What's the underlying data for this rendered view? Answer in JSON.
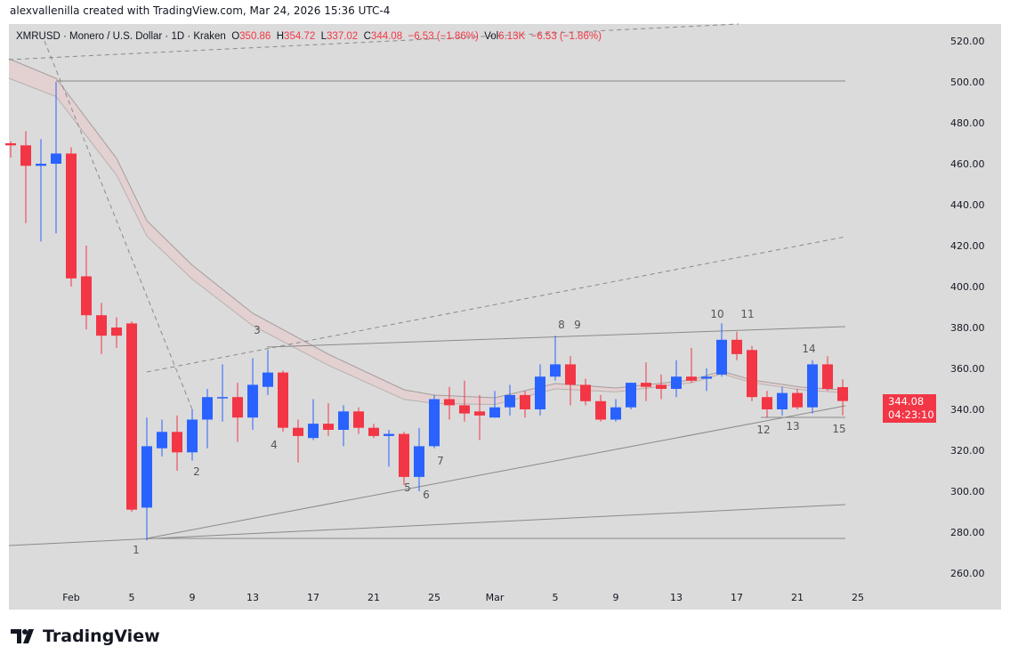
{
  "credit": "alexvallenilla created with TradingView.com, Mar 24, 2026 15:36 UTC-4",
  "legend": {
    "symbol": "XMRUSD · Monero / U.S. Dollar · 1D · Kraken",
    "o_label": "O",
    "o": "350.86",
    "h_label": "H",
    "h": "354.72",
    "l_label": "L",
    "l": "337.02",
    "c_label": "C",
    "c": "344.08",
    "change": "−6.53 (−1.86%)",
    "vol_label": "Vol",
    "vol": "6.13K",
    "vol_change": "−6.53 (−1.86%)"
  },
  "price_tag": {
    "price": "344.08",
    "countdown": "04:23:10"
  },
  "colors": {
    "up": "#2962ff",
    "down": "#f23645",
    "background": "#dbdbdb"
  },
  "chart_data": {
    "type": "candlestick",
    "y_ticks": [
      "520.00",
      "500.00",
      "480.00",
      "460.00",
      "440.00",
      "420.00",
      "400.00",
      "380.00",
      "360.00",
      "340.00",
      "320.00",
      "300.00",
      "280.00",
      "260.00"
    ],
    "ylim": [
      260,
      520
    ],
    "x_ticks": [
      [
        "Feb",
        "2026-02-01"
      ],
      [
        "5",
        "2026-02-05"
      ],
      [
        "9",
        "2026-02-09"
      ],
      [
        "13",
        "2026-02-13"
      ],
      [
        "17",
        "2026-02-17"
      ],
      [
        "21",
        "2026-02-21"
      ],
      [
        "25",
        "2026-02-25"
      ],
      [
        "Mar",
        "2026-03-01"
      ],
      [
        "5",
        "2026-03-05"
      ],
      [
        "9",
        "2026-03-09"
      ],
      [
        "13",
        "2026-03-13"
      ],
      [
        "17",
        "2026-03-17"
      ],
      [
        "21",
        "2026-03-21"
      ],
      [
        "25",
        "2026-03-25"
      ]
    ],
    "candles": [
      [
        "2026-01-28",
        470,
        471,
        463,
        469
      ],
      [
        "2026-01-29",
        469,
        476,
        431,
        459
      ],
      [
        "2026-01-30",
        459,
        472,
        422,
        460
      ],
      [
        "2026-01-31",
        460,
        500,
        426,
        465
      ],
      [
        "2026-02-01",
        465,
        468,
        400,
        404
      ],
      [
        "2026-02-02",
        405,
        420,
        379,
        386
      ],
      [
        "2026-02-03",
        386,
        392,
        367,
        376
      ],
      [
        "2026-02-04",
        380,
        385,
        370,
        376
      ],
      [
        "2026-02-05",
        382,
        383,
        290,
        291
      ],
      [
        "2026-02-06",
        292,
        336,
        276,
        322
      ],
      [
        "2026-02-07",
        321,
        335,
        317,
        329
      ],
      [
        "2026-02-08",
        329,
        337,
        310,
        319
      ],
      [
        "2026-02-09",
        319,
        340,
        315,
        335
      ],
      [
        "2026-02-10",
        335,
        350,
        321,
        346
      ],
      [
        "2026-02-11",
        346,
        362,
        334,
        346
      ],
      [
        "2026-02-12",
        346,
        353,
        324,
        336
      ],
      [
        "2026-02-13",
        336,
        365,
        330,
        352
      ],
      [
        "2026-02-14",
        351,
        369,
        347,
        358
      ],
      [
        "2026-02-15",
        358,
        359,
        329,
        331
      ],
      [
        "2026-02-16",
        331,
        335,
        314,
        327
      ],
      [
        "2026-02-17",
        326,
        345,
        325,
        333
      ],
      [
        "2026-02-18",
        333,
        343,
        327,
        330
      ],
      [
        "2026-02-19",
        330,
        342,
        322,
        339
      ],
      [
        "2026-02-20",
        339,
        341,
        328,
        331
      ],
      [
        "2026-02-21",
        331,
        333,
        326,
        327
      ],
      [
        "2026-02-22",
        327,
        330,
        312,
        328
      ],
      [
        "2026-02-23",
        328,
        329,
        303,
        307
      ],
      [
        "2026-02-24",
        307,
        331,
        300,
        322
      ],
      [
        "2026-02-25",
        322,
        347,
        321,
        345
      ],
      [
        "2026-02-26",
        345,
        351,
        335,
        342
      ],
      [
        "2026-02-27",
        342,
        354,
        334,
        338
      ],
      [
        "2026-02-28",
        339,
        347,
        325,
        337
      ],
      [
        "2026-03-01",
        336,
        349,
        336,
        341
      ],
      [
        "2026-03-02",
        341,
        352,
        337,
        347
      ],
      [
        "2026-03-03",
        347,
        349,
        336,
        340
      ],
      [
        "2026-03-04",
        340,
        362,
        337,
        356
      ],
      [
        "2026-03-05",
        356,
        376,
        354,
        362
      ],
      [
        "2026-03-06",
        362,
        366,
        342,
        352
      ],
      [
        "2026-03-07",
        352,
        355,
        342,
        344
      ],
      [
        "2026-03-08",
        344,
        347,
        334,
        335
      ],
      [
        "2026-03-09",
        335,
        345,
        334,
        341
      ],
      [
        "2026-03-10",
        341,
        353,
        340,
        353
      ],
      [
        "2026-03-11",
        353,
        363,
        344,
        351
      ],
      [
        "2026-03-12",
        352,
        357,
        345,
        350
      ],
      [
        "2026-03-13",
        350,
        364,
        346,
        356
      ],
      [
        "2026-03-14",
        356,
        370,
        353,
        354
      ],
      [
        "2026-03-15",
        355,
        360,
        349,
        356
      ],
      [
        "2026-03-16",
        357,
        382,
        356,
        374
      ],
      [
        "2026-03-17",
        374,
        378,
        364,
        367
      ],
      [
        "2026-03-18",
        369,
        371,
        344,
        346
      ],
      [
        "2026-03-19",
        346,
        349,
        336,
        340
      ],
      [
        "2026-03-20",
        340,
        351,
        337,
        348
      ],
      [
        "2026-03-21",
        348,
        350,
        340,
        341
      ],
      [
        "2026-03-22",
        341,
        364,
        338,
        362
      ],
      [
        "2026-03-23",
        362,
        366,
        349,
        350
      ],
      [
        "2026-03-24",
        350.86,
        354.72,
        337.02,
        344.08
      ]
    ],
    "wave_labels": [
      "1",
      "2",
      "3",
      "4",
      "5",
      "6",
      "7",
      "8",
      "9",
      "10",
      "11",
      "12",
      "13",
      "14",
      "15"
    ]
  },
  "footer": {
    "brand": "TradingView"
  }
}
